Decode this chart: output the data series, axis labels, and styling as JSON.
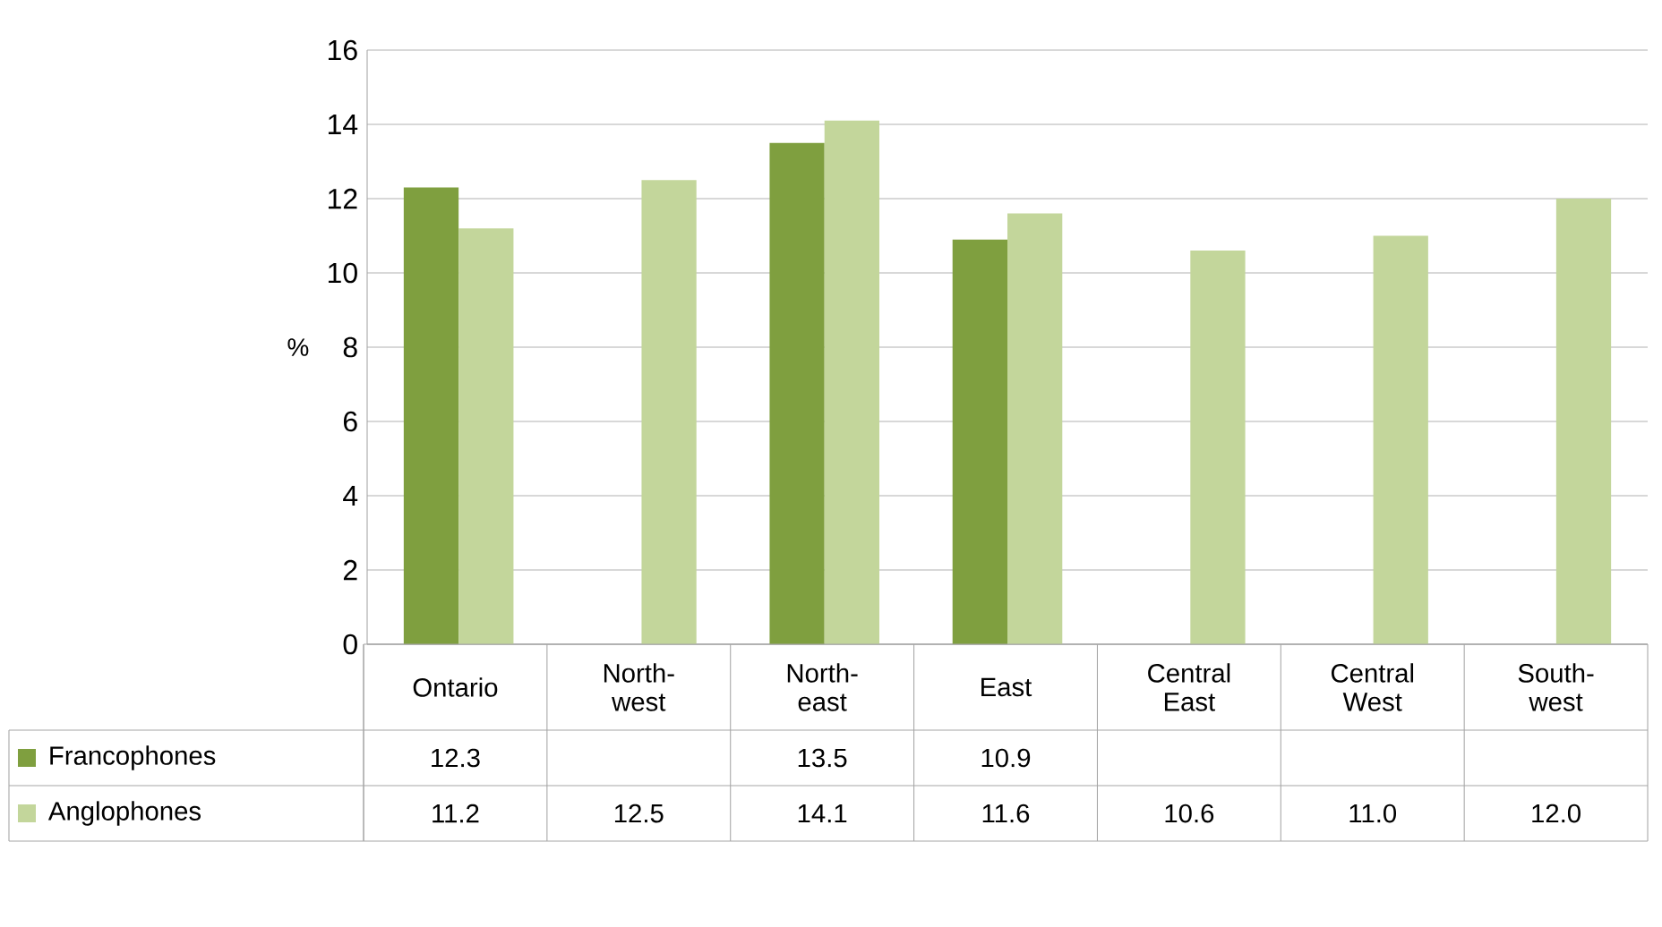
{
  "chart_data": {
    "type": "bar",
    "ylabel": "%",
    "categories": [
      "Ontario",
      "North-west",
      "North-east",
      "East",
      "Central East",
      "Central West",
      "South-west"
    ],
    "series": [
      {
        "name": "Francophones",
        "color": "#7f9f3f",
        "values": [
          12.3,
          null,
          13.5,
          10.9,
          null,
          null,
          null
        ],
        "value_labels": [
          "12.3",
          null,
          "13.5",
          "10.9",
          null,
          null,
          null
        ]
      },
      {
        "name": "Anglophones",
        "color": "#c3d69b",
        "values": [
          11.2,
          12.5,
          14.1,
          11.6,
          10.6,
          11.0,
          12.0
        ],
        "value_labels": [
          "11.2",
          "12.5",
          "14.1",
          "11.6",
          "10.6",
          "11.0",
          "12.0"
        ]
      }
    ],
    "ylim": [
      0,
      16
    ],
    "yticks": [
      0,
      2,
      4,
      6,
      8,
      10,
      12,
      14,
      16
    ],
    "grid": "y",
    "legend": "bottom"
  }
}
